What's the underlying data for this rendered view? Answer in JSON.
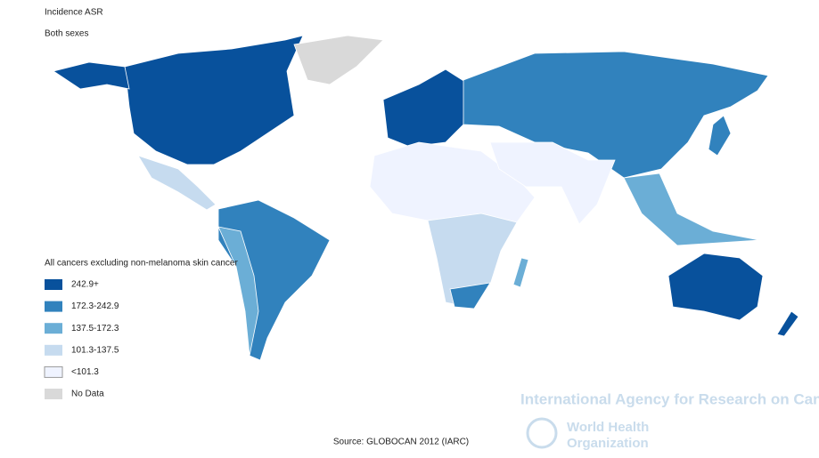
{
  "header": {
    "title": "Incidence ASR",
    "subtitle": "Both sexes"
  },
  "legend": {
    "title": "All cancers excluding non-melanoma skin cancer",
    "items": [
      {
        "label": "242.9+",
        "color": "#08519c"
      },
      {
        "label": "172.3-242.9",
        "color": "#3182bd"
      },
      {
        "label": "137.5-172.3",
        "color": "#6baed6"
      },
      {
        "label": "101.3-137.5",
        "color": "#c6dbef"
      },
      {
        "label": "<101.3",
        "color": "#eff3ff"
      },
      {
        "label": "No Data",
        "color": "#d9d9d9"
      }
    ]
  },
  "source": "Source: GLOBOCAN 2012 (IARC)",
  "watermark": {
    "agency": "International Agency for Research on Cancer",
    "who_line1": "World Health",
    "who_line2": "Organization"
  }
}
